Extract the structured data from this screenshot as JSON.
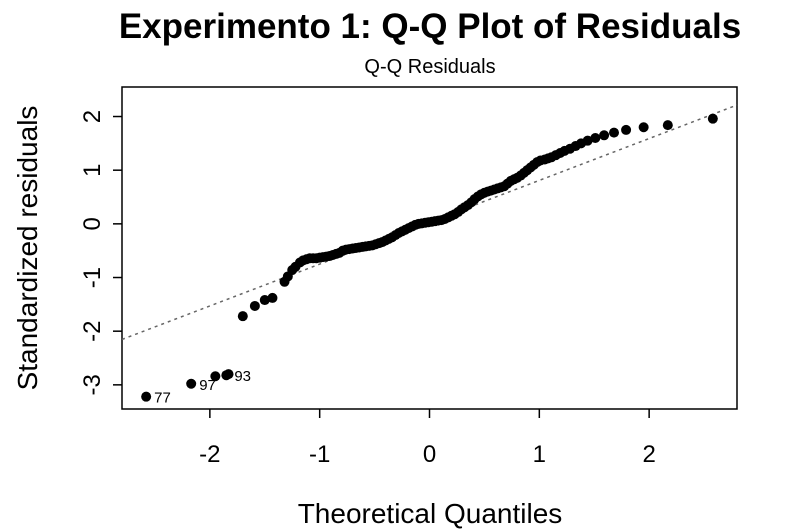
{
  "chart_data": {
    "type": "scatter",
    "title": "Experimento 1: Q-Q Plot of Residuals",
    "subtitle": "Q-Q Residuals",
    "xlabel": "Theoretical Quantiles",
    "ylabel": "Standardized residuals",
    "xlim": [
      -2.8,
      2.8
    ],
    "ylim": [
      -3.45,
      2.55
    ],
    "x_ticks": [
      -2,
      -1,
      0,
      1,
      2
    ],
    "x_tick_labels": [
      "-2",
      "-1",
      "0",
      "1",
      "2"
    ],
    "y_ticks": [
      -3,
      -2,
      -1,
      0,
      1,
      2
    ],
    "y_tick_labels": [
      "-3",
      "-2",
      "-1",
      "0",
      "1",
      "2"
    ],
    "grid": false,
    "point_color": "#000000",
    "reference_line": {
      "style": "dotted",
      "color": "#666666",
      "intercept": 0.03,
      "slope": 0.78
    },
    "x": [
      -2.58,
      -2.17,
      -1.95,
      -1.85,
      -1.83,
      -1.7,
      -1.59,
      -1.5,
      -1.43,
      -1.32,
      -1.29,
      -1.25,
      -1.22,
      -1.18,
      -1.15,
      -1.12,
      -1.09,
      -1.06,
      -1.03,
      -1.0,
      -0.97,
      -0.94,
      -0.91,
      -0.88,
      -0.85,
      -0.82,
      -0.79,
      -0.76,
      -0.73,
      -0.7,
      -0.67,
      -0.64,
      -0.61,
      -0.58,
      -0.55,
      -0.52,
      -0.49,
      -0.46,
      -0.43,
      -0.4,
      -0.37,
      -0.34,
      -0.31,
      -0.28,
      -0.25,
      -0.22,
      -0.19,
      -0.16,
      -0.13,
      -0.1,
      -0.07,
      -0.04,
      -0.01,
      0.02,
      0.05,
      0.08,
      0.11,
      0.14,
      0.17,
      0.2,
      0.23,
      0.26,
      0.29,
      0.32,
      0.35,
      0.38,
      0.41,
      0.44,
      0.47,
      0.5,
      0.53,
      0.56,
      0.59,
      0.62,
      0.65,
      0.68,
      0.71,
      0.74,
      0.77,
      0.8,
      0.83,
      0.86,
      0.89,
      0.92,
      0.95,
      0.98,
      1.01,
      1.05,
      1.08,
      1.11,
      1.15,
      1.19,
      1.23,
      1.28,
      1.33,
      1.38,
      1.44,
      1.51,
      1.59,
      1.68,
      1.79,
      1.95,
      2.17,
      2.58
    ],
    "y": [
      -3.22,
      -2.98,
      -2.84,
      -2.82,
      -2.8,
      -1.72,
      -1.53,
      -1.42,
      -1.38,
      -1.08,
      -0.98,
      -0.86,
      -0.8,
      -0.72,
      -0.68,
      -0.66,
      -0.64,
      -0.64,
      -0.64,
      -0.63,
      -0.62,
      -0.61,
      -0.6,
      -0.58,
      -0.56,
      -0.54,
      -0.5,
      -0.48,
      -0.47,
      -0.46,
      -0.45,
      -0.44,
      -0.43,
      -0.42,
      -0.41,
      -0.4,
      -0.38,
      -0.36,
      -0.34,
      -0.31,
      -0.28,
      -0.25,
      -0.21,
      -0.17,
      -0.14,
      -0.11,
      -0.08,
      -0.05,
      -0.02,
      0.0,
      0.01,
      0.02,
      0.03,
      0.04,
      0.05,
      0.06,
      0.07,
      0.09,
      0.12,
      0.15,
      0.18,
      0.22,
      0.27,
      0.31,
      0.35,
      0.4,
      0.46,
      0.51,
      0.55,
      0.58,
      0.6,
      0.62,
      0.64,
      0.66,
      0.68,
      0.7,
      0.75,
      0.8,
      0.83,
      0.86,
      0.9,
      0.95,
      1.0,
      1.05,
      1.1,
      1.15,
      1.18,
      1.2,
      1.22,
      1.24,
      1.28,
      1.32,
      1.36,
      1.4,
      1.45,
      1.5,
      1.55,
      1.6,
      1.65,
      1.7,
      1.75,
      1.8,
      1.84,
      1.96
    ],
    "labeled_points": [
      {
        "label": "77",
        "x": -2.58,
        "y": -3.22
      },
      {
        "label": "97",
        "x": -2.17,
        "y": -2.98
      },
      {
        "label": "93",
        "x": -1.85,
        "y": -2.82
      }
    ]
  }
}
